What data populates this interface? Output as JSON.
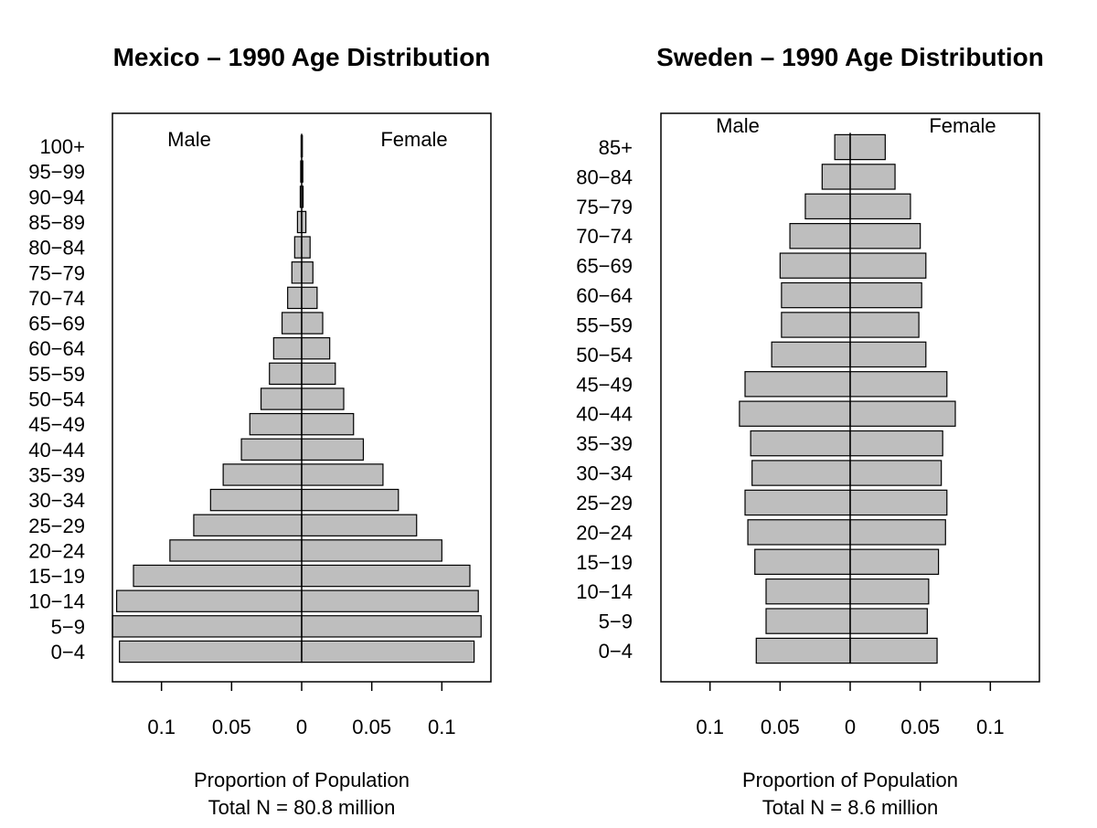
{
  "chart_data": [
    {
      "type": "bar",
      "orientation": "horizontal",
      "title": "Mexico – 1990 Age Distribution",
      "xlabel": "Proportion of Population",
      "subtitle": "Total N = 80.8 million",
      "xlim": [
        -0.135,
        0.135
      ],
      "xticks": [
        -0.1,
        -0.05,
        0,
        0.05,
        0.1
      ],
      "xtick_labels": [
        "0.1",
        "0.05",
        "0",
        "0.05",
        "0.1"
      ],
      "legend": {
        "left": "Male",
        "right": "Female"
      },
      "categories": [
        "0−4",
        "5−9",
        "10−14",
        "15−19",
        "20−24",
        "25−29",
        "30−34",
        "35−39",
        "40−44",
        "45−49",
        "50−54",
        "55−59",
        "60−64",
        "65−69",
        "70−74",
        "75−79",
        "80−84",
        "85−89",
        "90−94",
        "95−99",
        "100+"
      ],
      "series": [
        {
          "name": "Male",
          "values": [
            0.13,
            0.135,
            0.132,
            0.12,
            0.094,
            0.077,
            0.065,
            0.056,
            0.043,
            0.037,
            0.029,
            0.023,
            0.02,
            0.014,
            0.01,
            0.007,
            0.005,
            0.003,
            0.001,
            0.0007,
            0.0004
          ]
        },
        {
          "name": "Female",
          "values": [
            0.123,
            0.128,
            0.126,
            0.12,
            0.1,
            0.082,
            0.069,
            0.058,
            0.044,
            0.037,
            0.03,
            0.024,
            0.02,
            0.015,
            0.011,
            0.008,
            0.006,
            0.003,
            0.001,
            0.0008,
            0.0005
          ]
        }
      ]
    },
    {
      "type": "bar",
      "orientation": "horizontal",
      "title": "Sweden – 1990 Age Distribution",
      "xlabel": "Proportion of Population",
      "subtitle": "Total N = 8.6 million",
      "xlim": [
        -0.135,
        0.135
      ],
      "xticks": [
        -0.1,
        -0.05,
        0,
        0.05,
        0.1
      ],
      "xtick_labels": [
        "0.1",
        "0.05",
        "0",
        "0.05",
        "0.1"
      ],
      "legend": {
        "left": "Male",
        "right": "Female"
      },
      "categories": [
        "0−4",
        "5−9",
        "10−14",
        "15−19",
        "20−24",
        "25−29",
        "30−34",
        "35−39",
        "40−44",
        "45−49",
        "50−54",
        "55−59",
        "60−64",
        "65−69",
        "70−74",
        "75−79",
        "80−84",
        "85+"
      ],
      "series": [
        {
          "name": "Male",
          "values": [
            0.067,
            0.06,
            0.06,
            0.068,
            0.073,
            0.075,
            0.07,
            0.071,
            0.079,
            0.075,
            0.056,
            0.049,
            0.049,
            0.05,
            0.043,
            0.032,
            0.02,
            0.011
          ]
        },
        {
          "name": "Female",
          "values": [
            0.062,
            0.055,
            0.056,
            0.063,
            0.068,
            0.069,
            0.065,
            0.066,
            0.075,
            0.069,
            0.054,
            0.049,
            0.051,
            0.054,
            0.05,
            0.043,
            0.032,
            0.025
          ]
        }
      ]
    }
  ]
}
